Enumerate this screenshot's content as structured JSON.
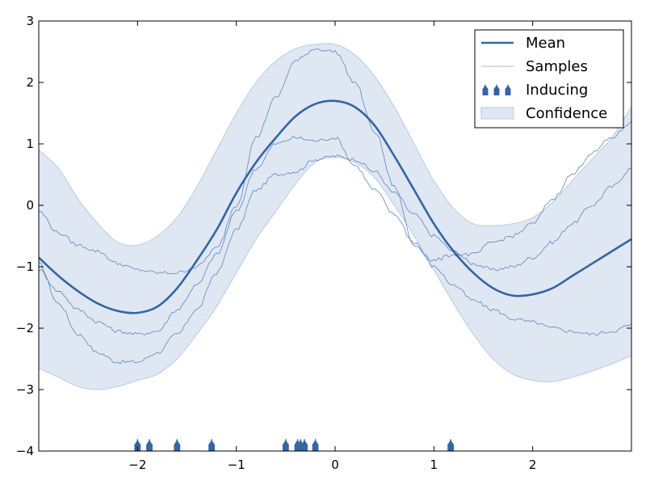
{
  "chart_data": {
    "type": "line",
    "xlim": [
      -3,
      3
    ],
    "ylim": [
      -4,
      3
    ],
    "x_ticks": [
      -2,
      -1,
      0,
      1,
      2
    ],
    "x_tick_labels": [
      "−2",
      "−1",
      "0",
      "1",
      "2"
    ],
    "y_ticks": [
      -4,
      -3,
      -2,
      -1,
      0,
      1,
      2,
      3
    ],
    "y_tick_labels": [
      "−4",
      "−3",
      "−2",
      "−1",
      "0",
      "1",
      "2",
      "3"
    ],
    "grid": false,
    "legend_position": "top-right",
    "colors": {
      "mean": "#3465a4",
      "samples": "#5b86c2",
      "inducing": "#3465a4",
      "confidence_fill": "#dfe7f2",
      "confidence_edge": "#b9cbe4"
    },
    "legend": [
      {
        "label": "Mean",
        "kind": "line"
      },
      {
        "label": "Samples",
        "kind": "thin-line"
      },
      {
        "label": "Inducing",
        "kind": "marker"
      },
      {
        "label": "Confidence",
        "kind": "patch"
      }
    ],
    "x": [
      -3.0,
      -2.8,
      -2.6,
      -2.4,
      -2.2,
      -2.0,
      -1.8,
      -1.6,
      -1.4,
      -1.2,
      -1.0,
      -0.8,
      -0.6,
      -0.4,
      -0.2,
      0.0,
      0.2,
      0.4,
      0.6,
      0.8,
      1.0,
      1.2,
      1.4,
      1.6,
      1.8,
      2.0,
      2.2,
      2.4,
      2.6,
      2.8,
      3.0
    ],
    "series": [
      {
        "name": "Mean",
        "values": [
          -0.85,
          -1.15,
          -1.4,
          -1.6,
          -1.72,
          -1.75,
          -1.65,
          -1.35,
          -0.9,
          -0.4,
          0.2,
          0.7,
          1.1,
          1.45,
          1.65,
          1.7,
          1.6,
          1.3,
          0.8,
          0.25,
          -0.3,
          -0.75,
          -1.1,
          -1.35,
          -1.47,
          -1.45,
          -1.35,
          -1.15,
          -0.95,
          -0.75,
          -0.55
        ]
      },
      {
        "name": "Confidence upper",
        "values": [
          0.9,
          0.6,
          0.1,
          -0.3,
          -0.6,
          -0.65,
          -0.5,
          -0.2,
          0.3,
          0.9,
          1.5,
          2.0,
          2.35,
          2.55,
          2.62,
          2.62,
          2.45,
          2.1,
          1.6,
          1.0,
          0.4,
          -0.05,
          -0.3,
          -0.33,
          -0.3,
          -0.2,
          0.05,
          0.4,
          0.75,
          1.1,
          1.6
        ]
      },
      {
        "name": "Confidence lower",
        "values": [
          -2.65,
          -2.8,
          -2.95,
          -3.0,
          -2.95,
          -2.85,
          -2.75,
          -2.5,
          -2.1,
          -1.65,
          -1.1,
          -0.55,
          -0.1,
          0.35,
          0.7,
          0.78,
          0.7,
          0.45,
          0.0,
          -0.5,
          -1.05,
          -1.6,
          -2.1,
          -2.5,
          -2.75,
          -2.85,
          -2.87,
          -2.8,
          -2.7,
          -2.58,
          -2.45
        ]
      },
      {
        "name": "Sample 1",
        "values": [
          -0.95,
          -1.6,
          -2.1,
          -2.4,
          -2.55,
          -2.55,
          -2.4,
          -2.1,
          -1.7,
          -1.1,
          -0.4,
          0.25,
          0.5,
          0.55,
          0.75,
          0.8,
          0.75,
          0.55,
          0.2,
          -0.15,
          -0.5,
          -0.75,
          -0.95,
          -1.05,
          -1.0,
          -0.85,
          -0.6,
          -0.3,
          0.0,
          0.3,
          0.6
        ]
      },
      {
        "name": "Sample 2",
        "values": [
          -1.05,
          -1.4,
          -1.7,
          -1.9,
          -2.05,
          -2.1,
          -2.05,
          -1.7,
          -1.3,
          -0.8,
          -0.1,
          0.6,
          1.0,
          1.1,
          1.05,
          1.1,
          0.65,
          0.25,
          -0.15,
          -0.6,
          -1.0,
          -1.3,
          -1.55,
          -1.7,
          -1.85,
          -1.9,
          -2.0,
          -2.05,
          -2.1,
          -2.05,
          -1.95
        ]
      },
      {
        "name": "Sample 3",
        "values": [
          -0.1,
          -0.45,
          -0.65,
          -0.75,
          -0.95,
          -1.05,
          -1.1,
          -1.1,
          -1.0,
          -0.7,
          0.0,
          1.1,
          1.75,
          2.35,
          2.55,
          2.5,
          2.0,
          1.2,
          0.3,
          -0.65,
          -0.9,
          -0.8,
          -0.8,
          -0.6,
          -0.5,
          -0.3,
          0.1,
          0.5,
          0.85,
          1.1,
          1.35
        ]
      }
    ],
    "inducing_x": [
      -2.0,
      -1.88,
      -1.6,
      -1.25,
      -0.5,
      -0.38,
      -0.35,
      -0.31,
      -0.2,
      1.17
    ]
  }
}
